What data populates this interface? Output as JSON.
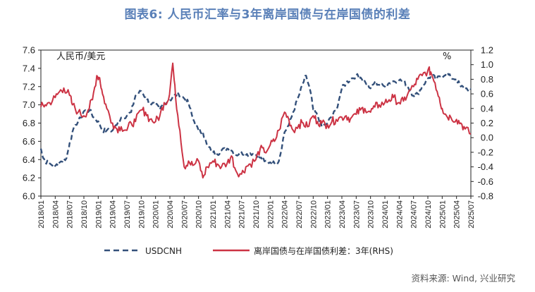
{
  "figure_title": "图表6: 人民币汇率与3年离岸国债与在岸国债的利差",
  "source_note": "资料来源: Wind, 兴业研究",
  "chart_data": {
    "type": "line",
    "title": "图表6: 人民币汇率与3年离岸国债与在岸国债的利差",
    "left_axis_label": "人民币/美元",
    "right_axis_label": "%",
    "y_left": {
      "min": 6.0,
      "max": 7.6,
      "ticks": [
        "7.6",
        "7.4",
        "7.2",
        "7.0",
        "6.8",
        "6.6",
        "6.4",
        "6.2",
        "6.0"
      ]
    },
    "y_right": {
      "min": -0.8,
      "max": 1.2,
      "ticks": [
        "1.2",
        "1.0",
        "0.8",
        "0.6",
        "0.4",
        "0.2",
        "0.0",
        "-0.2",
        "-0.4",
        "-0.6",
        "-0.8"
      ]
    },
    "x_ticks": [
      "2018/01",
      "2018/04",
      "2018/07",
      "2018/10",
      "2019/01",
      "2019/04",
      "2019/07",
      "2019/10",
      "2020/01",
      "2020/04",
      "2020/07",
      "2020/10",
      "2021/01",
      "2021/04",
      "2021/07",
      "2021/10",
      "2022/01",
      "2022/04",
      "2022/07",
      "2022/10",
      "2023/01",
      "2023/04",
      "2023/07",
      "2023/10",
      "2024/01",
      "2024/04",
      "2024/07",
      "2024/10",
      "2025/01",
      "2025/04",
      "2025/07"
    ],
    "series": [
      {
        "name": "USDCNH",
        "axis": "left",
        "color": "#33507a",
        "style": "dashed",
        "points": [
          [
            0,
            6.52
          ],
          [
            0.1,
            6.45
          ],
          [
            0.3,
            6.38
          ],
          [
            0.6,
            6.36
          ],
          [
            1,
            6.33
          ],
          [
            1.4,
            6.38
          ],
          [
            1.8,
            6.42
          ],
          [
            2,
            6.58
          ],
          [
            2.4,
            6.78
          ],
          [
            2.8,
            6.86
          ],
          [
            3,
            6.93
          ],
          [
            3.4,
            6.94
          ],
          [
            3.7,
            6.86
          ],
          [
            4,
            6.82
          ],
          [
            4.3,
            6.72
          ],
          [
            4.6,
            6.72
          ],
          [
            5,
            6.72
          ],
          [
            5.3,
            6.78
          ],
          [
            5.6,
            6.86
          ],
          [
            6,
            6.88
          ],
          [
            6.3,
            6.92
          ],
          [
            6.6,
            7.1
          ],
          [
            7,
            7.15
          ],
          [
            7.3,
            7.08
          ],
          [
            7.6,
            7.02
          ],
          [
            8,
            7.0
          ],
          [
            8.3,
            6.95
          ],
          [
            8.6,
            7.02
          ],
          [
            9,
            7.05
          ],
          [
            9.3,
            7.1
          ],
          [
            9.6,
            7.12
          ],
          [
            10,
            7.07
          ],
          [
            10.3,
            7.02
          ],
          [
            10.6,
            6.85
          ],
          [
            11,
            6.72
          ],
          [
            11.3,
            6.7
          ],
          [
            11.6,
            6.55
          ],
          [
            12,
            6.48
          ],
          [
            12.3,
            6.46
          ],
          [
            12.6,
            6.5
          ],
          [
            13,
            6.52
          ],
          [
            13.3,
            6.5
          ],
          [
            13.6,
            6.45
          ],
          [
            14,
            6.48
          ],
          [
            14.3,
            6.45
          ],
          [
            14.6,
            6.47
          ],
          [
            15,
            6.46
          ],
          [
            15.3,
            6.42
          ],
          [
            15.6,
            6.38
          ],
          [
            16,
            6.37
          ],
          [
            16.3,
            6.36
          ],
          [
            16.6,
            6.38
          ],
          [
            17,
            6.7
          ],
          [
            17.3,
            6.78
          ],
          [
            17.6,
            6.92
          ],
          [
            18,
            7.1
          ],
          [
            18.3,
            7.24
          ],
          [
            18.5,
            7.32
          ],
          [
            18.8,
            7.15
          ],
          [
            19,
            6.95
          ],
          [
            19.3,
            6.88
          ],
          [
            19.6,
            6.76
          ],
          [
            20,
            6.8
          ],
          [
            20.3,
            6.88
          ],
          [
            20.6,
            6.94
          ],
          [
            21,
            7.18
          ],
          [
            21.3,
            7.24
          ],
          [
            21.6,
            7.28
          ],
          [
            22,
            7.32
          ],
          [
            22.3,
            7.3
          ],
          [
            22.6,
            7.26
          ],
          [
            23,
            7.18
          ],
          [
            23.3,
            7.25
          ],
          [
            23.6,
            7.22
          ],
          [
            24,
            7.2
          ],
          [
            24.3,
            7.24
          ],
          [
            24.6,
            7.26
          ],
          [
            25,
            7.27
          ],
          [
            25.3,
            7.26
          ],
          [
            25.6,
            7.2
          ],
          [
            26,
            7.1
          ],
          [
            26.3,
            7.12
          ],
          [
            26.6,
            7.2
          ],
          [
            27,
            7.29
          ],
          [
            27.3,
            7.32
          ],
          [
            27.6,
            7.28
          ],
          [
            28,
            7.32
          ],
          [
            28.3,
            7.35
          ],
          [
            28.6,
            7.3
          ],
          [
            29,
            7.28
          ],
          [
            29.3,
            7.2
          ],
          [
            29.6,
            7.18
          ],
          [
            30,
            7.17
          ]
        ]
      },
      {
        "name": "离岸国债与在岸国债利差：3年(RHS)",
        "axis": "right",
        "color": "#cc3344",
        "style": "solid",
        "points": [
          [
            0,
            0.42
          ],
          [
            0.3,
            0.45
          ],
          [
            0.6,
            0.48
          ],
          [
            1,
            0.55
          ],
          [
            1.3,
            0.63
          ],
          [
            1.6,
            0.68
          ],
          [
            2,
            0.58
          ],
          [
            2.2,
            0.45
          ],
          [
            2.6,
            0.35
          ],
          [
            3,
            0.3
          ],
          [
            3.3,
            0.38
          ],
          [
            3.6,
            0.52
          ],
          [
            3.9,
            0.85
          ],
          [
            4.1,
            0.82
          ],
          [
            4.3,
            0.6
          ],
          [
            4.6,
            0.4
          ],
          [
            5,
            0.2
          ],
          [
            5.3,
            0.12
          ],
          [
            5.6,
            0.15
          ],
          [
            6,
            0.1
          ],
          [
            6.3,
            0.2
          ],
          [
            6.6,
            0.22
          ],
          [
            7,
            0.38
          ],
          [
            7.3,
            0.35
          ],
          [
            7.6,
            0.25
          ],
          [
            8,
            0.22
          ],
          [
            8.3,
            0.3
          ],
          [
            8.6,
            0.48
          ],
          [
            8.9,
            0.52
          ],
          [
            9.2,
            1.02
          ],
          [
            9.4,
            0.55
          ],
          [
            9.7,
            0.1
          ],
          [
            10,
            -0.4
          ],
          [
            10.3,
            -0.32
          ],
          [
            10.6,
            -0.38
          ],
          [
            11,
            -0.32
          ],
          [
            11.3,
            -0.55
          ],
          [
            11.6,
            -0.4
          ],
          [
            12,
            -0.32
          ],
          [
            12.3,
            -0.36
          ],
          [
            12.6,
            -0.4
          ],
          [
            13,
            -0.35
          ],
          [
            13.3,
            -0.25
          ],
          [
            13.6,
            -0.45
          ],
          [
            14,
            -0.5
          ],
          [
            14.3,
            -0.4
          ],
          [
            14.6,
            -0.36
          ],
          [
            15,
            -0.3
          ],
          [
            15.3,
            -0.15
          ],
          [
            15.6,
            -0.2
          ],
          [
            16,
            -0.1
          ],
          [
            16.3,
            -0.05
          ],
          [
            16.6,
            0.1
          ],
          [
            17,
            0.35
          ],
          [
            17.3,
            0.25
          ],
          [
            17.6,
            0.1
          ],
          [
            18,
            0.18
          ],
          [
            18.3,
            0.2
          ],
          [
            18.6,
            0.15
          ],
          [
            19,
            0.3
          ],
          [
            19.3,
            0.22
          ],
          [
            19.6,
            0.2
          ],
          [
            20,
            0.18
          ],
          [
            20.3,
            0.22
          ],
          [
            20.6,
            0.25
          ],
          [
            21,
            0.28
          ],
          [
            21.3,
            0.3
          ],
          [
            21.6,
            0.26
          ],
          [
            22,
            0.32
          ],
          [
            22.3,
            0.38
          ],
          [
            22.6,
            0.4
          ],
          [
            23,
            0.35
          ],
          [
            23.3,
            0.42
          ],
          [
            23.6,
            0.45
          ],
          [
            24,
            0.48
          ],
          [
            24.3,
            0.52
          ],
          [
            24.6,
            0.55
          ],
          [
            25,
            0.48
          ],
          [
            25.3,
            0.5
          ],
          [
            25.6,
            0.6
          ],
          [
            26,
            0.7
          ],
          [
            26.3,
            0.8
          ],
          [
            26.6,
            0.85
          ],
          [
            27,
            0.92
          ],
          [
            27.2,
            0.9
          ],
          [
            27.5,
            0.75
          ],
          [
            27.8,
            0.55
          ],
          [
            28,
            0.4
          ],
          [
            28.3,
            0.3
          ],
          [
            28.6,
            0.28
          ],
          [
            29,
            0.25
          ],
          [
            29.3,
            0.2
          ],
          [
            29.6,
            0.12
          ],
          [
            30,
            0.05
          ]
        ]
      }
    ]
  },
  "legend": {
    "items": [
      {
        "label": "USDCNH",
        "color": "#33507a",
        "style": "dashed"
      },
      {
        "label": "离岸国债与在岸国债利差：3年(RHS)",
        "color": "#cc3344",
        "style": "solid"
      }
    ]
  }
}
